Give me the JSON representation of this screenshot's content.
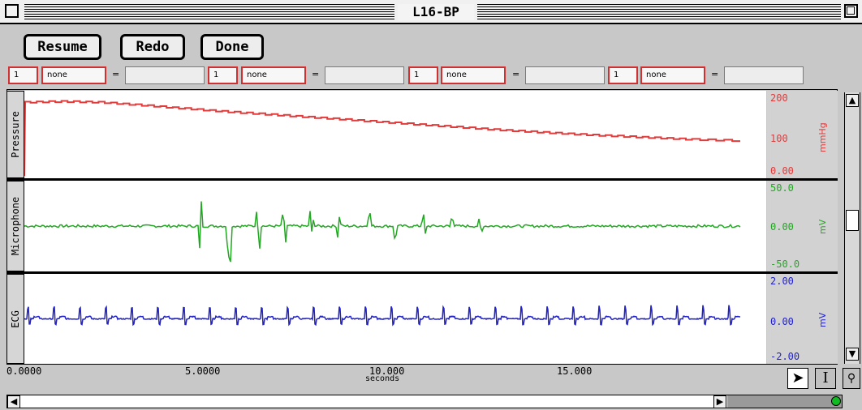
{
  "window": {
    "title": "L16-BP"
  },
  "toolbar": {
    "resume_label": "Resume",
    "redo_label": "Redo",
    "done_label": "Done"
  },
  "formulas": [
    {
      "n": "1",
      "op": "none",
      "eq": "="
    },
    {
      "n": "1",
      "op": "none",
      "eq": "="
    },
    {
      "n": "1",
      "op": "none",
      "eq": "="
    },
    {
      "n": "1",
      "op": "none",
      "eq": "="
    }
  ],
  "channels": {
    "pressure": {
      "label": "Pressure",
      "unit": "mmHg",
      "ticks": [
        "200",
        "100",
        "0.00"
      ],
      "color": "#e03c3c"
    },
    "microphone": {
      "label": "Microphone",
      "unit": "mV",
      "ticks": [
        "50.0",
        "0.00",
        "-50.0"
      ],
      "color": "#22a822"
    },
    "ecg": {
      "label": "ECG",
      "unit": "mV",
      "ticks": [
        "2.00",
        "0.00",
        "-2.00"
      ],
      "color": "#2222cc"
    }
  },
  "axis": {
    "ticks": [
      "0.0000",
      "5.0000",
      "10.000",
      "15.000"
    ],
    "label": "seconds"
  },
  "icons": [
    "close-box-icon",
    "zoom-box-icon",
    "arrow-tool-icon",
    "ibeam-tool-icon",
    "magnifier-tool-icon",
    "scroll-left-icon",
    "scroll-right-icon",
    "scroll-up-icon",
    "scroll-down-icon",
    "status-light-icon"
  ],
  "chart_data": {
    "type": "line",
    "x_range": [
      0,
      20
    ],
    "xlabel": "seconds",
    "series": [
      {
        "name": "Pressure",
        "unit": "mmHg",
        "ylim": [
          0,
          200
        ],
        "x": [
          0,
          1,
          2,
          3,
          4,
          5,
          6,
          7,
          8,
          9,
          10,
          11,
          12,
          13,
          14,
          15,
          16,
          17,
          18,
          19.3
        ],
        "values": [
          178,
          180,
          178,
          172,
          165,
          158,
          152,
          146,
          140,
          134,
          128,
          122,
          116,
          110,
          105,
          100,
          96,
          92,
          88,
          85
        ]
      },
      {
        "name": "Microphone",
        "unit": "mV",
        "ylim": [
          -50,
          50
        ],
        "spike_times": [
          4.75,
          5.5,
          6.3,
          7.0,
          7.75,
          8.5,
          9.3,
          10.0,
          10.75,
          11.5,
          12.3
        ],
        "spike_amplitudes": [
          30,
          45,
          30,
          22,
          18,
          16,
          15,
          14,
          12,
          10,
          8
        ]
      },
      {
        "name": "ECG",
        "unit": "mV",
        "ylim": [
          -2,
          2
        ],
        "beat_times": [
          0.1,
          0.8,
          1.5,
          2.2,
          2.9,
          3.6,
          4.3,
          5.0,
          5.7,
          6.4,
          7.1,
          7.8,
          8.5,
          9.2,
          9.9,
          10.6,
          11.3,
          12.0,
          12.7,
          13.4,
          14.1,
          14.8,
          15.5,
          16.2,
          16.9,
          17.6,
          18.3,
          19.0
        ],
        "r_amplitude": 0.8
      }
    ]
  }
}
